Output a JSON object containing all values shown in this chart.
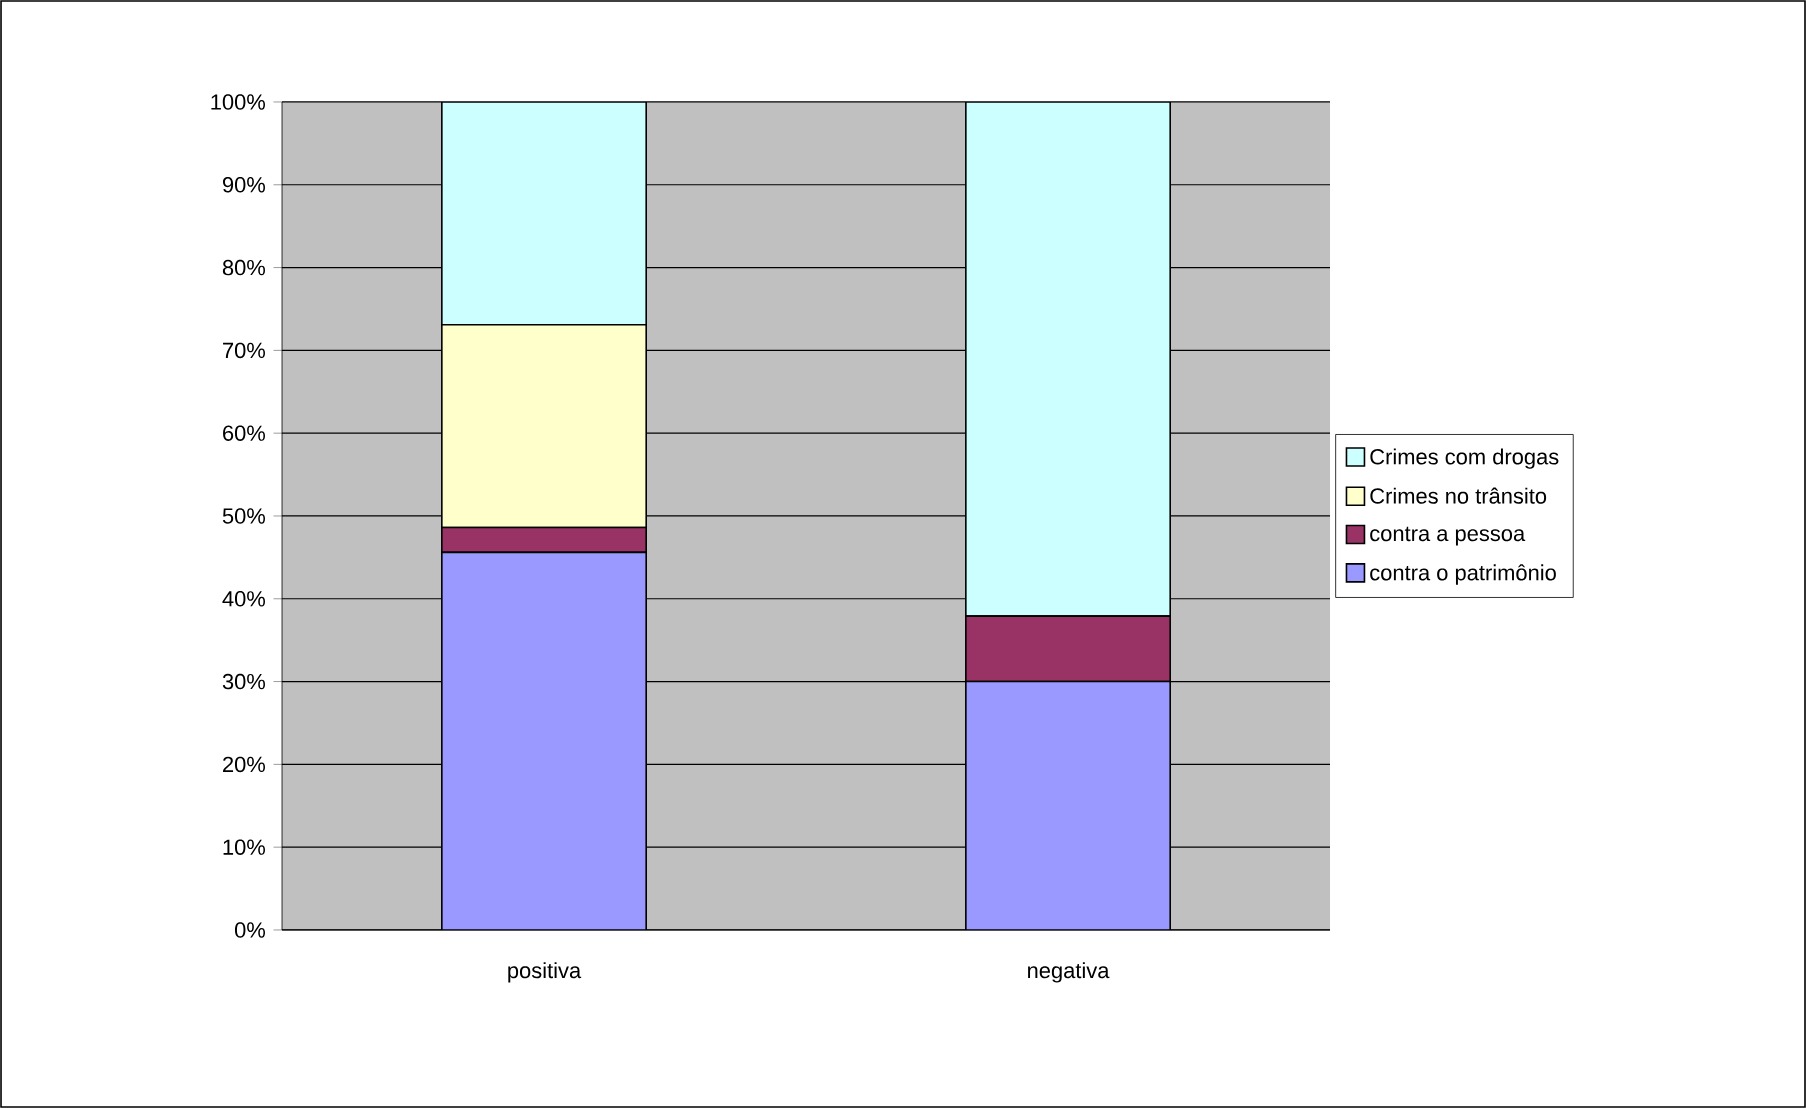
{
  "chart_data": {
    "type": "bar",
    "stacked": true,
    "categories": [
      "positiva",
      "negativa"
    ],
    "series": [
      {
        "name": "contra o patrimônio",
        "color": "#9999ff",
        "values": [
          45.6,
          30
        ]
      },
      {
        "name": "contra a pessoa",
        "color": "#993366",
        "values": [
          3,
          7.9
        ]
      },
      {
        "name": "Crimes no trânsito",
        "color": "#ffffcc",
        "values": [
          24.5,
          0
        ]
      },
      {
        "name": "Crimes com drogas",
        "color": "#ccffff",
        "values": [
          26.9,
          62.1
        ]
      }
    ],
    "ylim": [
      0,
      100
    ],
    "yticks": [
      {
        "value": 0,
        "label": "0%"
      },
      {
        "value": 10,
        "label": "10%"
      },
      {
        "value": 20,
        "label": "20%"
      },
      {
        "value": 30,
        "label": "30%"
      },
      {
        "value": 40,
        "label": "40%"
      },
      {
        "value": 50,
        "label": "50%"
      },
      {
        "value": 60,
        "label": "60%"
      },
      {
        "value": 70,
        "label": "70%"
      },
      {
        "value": 80,
        "label": "80%"
      },
      {
        "value": 90,
        "label": "90%"
      },
      {
        "value": 100,
        "label": "100%"
      }
    ],
    "grid": "y",
    "legend": "right"
  }
}
